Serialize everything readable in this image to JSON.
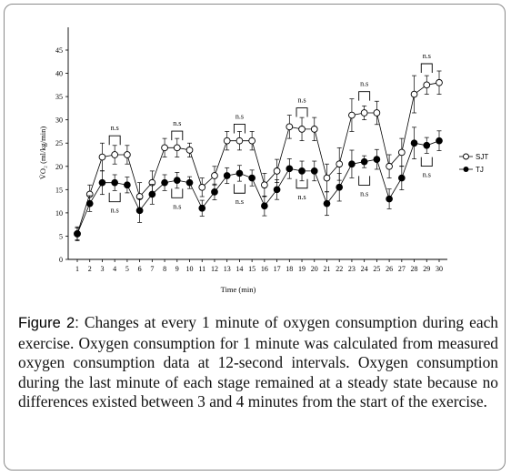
{
  "figure": {
    "caption_lead": "Figure 2:",
    "caption_text": "Changes at every 1 minute of oxygen consumption during each exercise. Oxygen consumption for 1 minute was calculated from measured oxygen consumption data at 12-second intervals. Oxygen consumption during the last minute of each stage remained at a steady state because no differences existed between 3 and 4 minutes from the start of the exercise."
  },
  "chart_data": {
    "type": "line",
    "xlabel": "Time (min)",
    "ylabel": "V̇O₂ (ml/kg/min)",
    "categories": [
      "1",
      "2",
      "3",
      "4",
      "5",
      "6",
      "7",
      "8",
      "9",
      "10",
      "11",
      "12",
      "13",
      "14",
      "15",
      "16",
      "17",
      "18",
      "19",
      "20",
      "21",
      "22",
      "23",
      "24",
      "25",
      "26",
      "27",
      "28",
      "29",
      "30"
    ],
    "ylim": [
      0,
      45
    ],
    "yticks": [
      0,
      5,
      10,
      15,
      20,
      25,
      30,
      35,
      40,
      45
    ],
    "grid": false,
    "legend_position": "right",
    "series": [
      {
        "name": "SJT",
        "marker": "open-circle",
        "values": [
          5.5,
          14.0,
          22.0,
          22.5,
          22.5,
          13.5,
          16.5,
          24.0,
          24.0,
          23.5,
          15.5,
          18.0,
          25.5,
          25.5,
          25.5,
          16.0,
          19.0,
          28.5,
          28.0,
          28.0,
          17.5,
          20.5,
          31.0,
          31.5,
          31.5,
          20.0,
          23.0,
          35.5,
          37.5,
          38.0
        ],
        "errors": [
          1.5,
          2.0,
          3.0,
          2.0,
          2.0,
          3.0,
          2.5,
          2.0,
          2.0,
          1.5,
          2.0,
          2.0,
          2.0,
          2.0,
          2.0,
          2.5,
          2.5,
          2.5,
          2.5,
          2.5,
          3.0,
          3.5,
          3.5,
          1.5,
          2.5,
          2.5,
          3.0,
          4.0,
          2.0,
          2.5
        ]
      },
      {
        "name": "TJ",
        "marker": "filled-circle",
        "values": [
          5.5,
          12.0,
          16.5,
          16.5,
          16.0,
          10.5,
          14.0,
          16.5,
          17.0,
          16.5,
          11.0,
          14.5,
          18.0,
          18.5,
          17.5,
          11.5,
          15.0,
          19.5,
          19.0,
          19.0,
          12.0,
          15.5,
          20.5,
          21.0,
          21.5,
          13.0,
          17.5,
          25.0,
          24.5,
          25.5
        ]
      }
    ],
    "annotations": [
      "n.s",
      "n.s",
      "n.s",
      "n.s",
      "n.s",
      "n.s",
      "n.s",
      "n.s",
      "n.s",
      "n.s",
      "n.s",
      "n.s"
    ]
  }
}
